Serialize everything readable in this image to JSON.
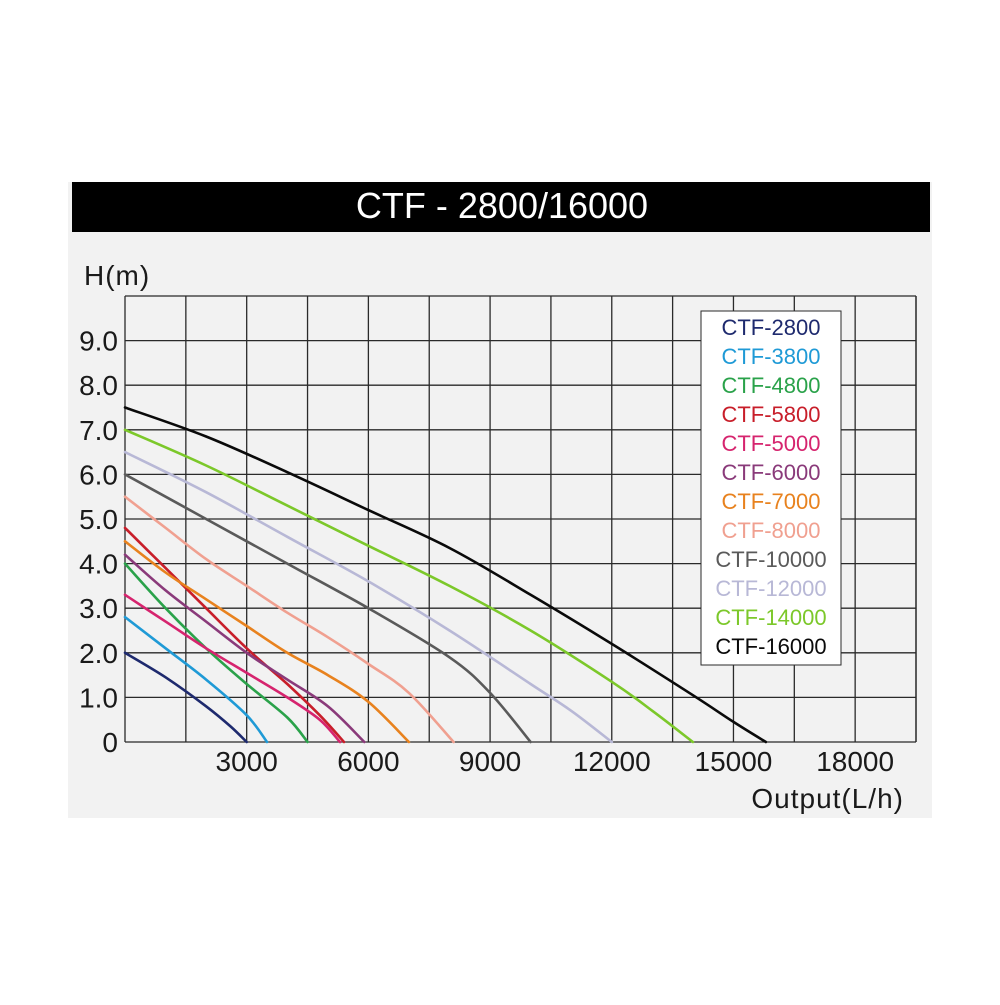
{
  "chart_data": {
    "type": "line",
    "title": "CTF - 2800/16000",
    "ylabel": "H(m)",
    "xlabel": "Output(L/h)",
    "xlim": [
      0,
      19500
    ],
    "ylim": [
      0,
      10
    ],
    "x_ticks": [
      {
        "value": 3000,
        "label": "3000"
      },
      {
        "value": 6000,
        "label": "6000"
      },
      {
        "value": 9000,
        "label": "9000"
      },
      {
        "value": 12000,
        "label": "12000"
      },
      {
        "value": 15000,
        "label": "15000"
      },
      {
        "value": 18000,
        "label": "18000"
      }
    ],
    "y_ticks": [
      {
        "value": 0,
        "label": "0"
      },
      {
        "value": 1,
        "label": "1.0"
      },
      {
        "value": 2,
        "label": "2.0"
      },
      {
        "value": 3,
        "label": "3.0"
      },
      {
        "value": 4,
        "label": "4.0"
      },
      {
        "value": 5,
        "label": "5.0"
      },
      {
        "value": 6,
        "label": "6.0"
      },
      {
        "value": 7,
        "label": "7.0"
      },
      {
        "value": 8,
        "label": "8.0"
      },
      {
        "value": 9,
        "label": "9.0"
      }
    ],
    "grid": true,
    "legend_position": "top-right",
    "series": [
      {
        "name": "CTF-2800",
        "color": "#1e2a6e",
        "x": [
          0,
          1000,
          2000,
          2600,
          3000
        ],
        "y": [
          2.0,
          1.45,
          0.8,
          0.35,
          0
        ]
      },
      {
        "name": "CTF-3800",
        "color": "#1f9ad6",
        "x": [
          0,
          1000,
          2000,
          3000,
          3500
        ],
        "y": [
          2.8,
          2.1,
          1.4,
          0.6,
          0
        ]
      },
      {
        "name": "CTF-4800",
        "color": "#2aa24a",
        "x": [
          0,
          1000,
          2000,
          3000,
          4000,
          4500
        ],
        "y": [
          4.0,
          3.0,
          2.1,
          1.3,
          0.55,
          0
        ]
      },
      {
        "name": "CTF-5800",
        "color": "#c81e2a",
        "x": [
          0,
          1000,
          2000,
          3000,
          4000,
          4800,
          5400
        ],
        "y": [
          4.8,
          3.9,
          3.0,
          2.1,
          1.3,
          0.6,
          0
        ]
      },
      {
        "name": "CTF-5000",
        "color": "#d6246e",
        "x": [
          0,
          1000,
          2000,
          3000,
          4000,
          4800,
          5300
        ],
        "y": [
          3.3,
          2.7,
          2.1,
          1.55,
          1.0,
          0.5,
          0
        ]
      },
      {
        "name": "CTF-6000",
        "color": "#8a3a7a",
        "x": [
          0,
          1000,
          2000,
          3000,
          4000,
          5000,
          5900
        ],
        "y": [
          4.2,
          3.4,
          2.7,
          2.0,
          1.4,
          0.8,
          0
        ]
      },
      {
        "name": "CTF-7000",
        "color": "#e8821e",
        "x": [
          0,
          1000,
          2000,
          3000,
          4000,
          5000,
          6000,
          7000
        ],
        "y": [
          4.5,
          3.8,
          3.2,
          2.6,
          2.0,
          1.5,
          0.9,
          0
        ]
      },
      {
        "name": "CTF-8000",
        "color": "#f0a090",
        "x": [
          0,
          1000,
          2000,
          3000,
          4000,
          5000,
          6000,
          7000,
          8100
        ],
        "y": [
          5.5,
          4.8,
          4.1,
          3.5,
          2.9,
          2.35,
          1.75,
          1.1,
          0
        ]
      },
      {
        "name": "CTF-10000",
        "color": "#5a5a5a",
        "x": [
          0,
          2000,
          4000,
          6000,
          8000,
          9000,
          10000
        ],
        "y": [
          6.0,
          5.0,
          4.0,
          3.0,
          1.9,
          1.1,
          0
        ]
      },
      {
        "name": "CTF-12000",
        "color": "#b8b8d6",
        "x": [
          0,
          2000,
          4000,
          6000,
          8000,
          10000,
          11000,
          12000
        ],
        "y": [
          6.5,
          5.6,
          4.6,
          3.6,
          2.5,
          1.3,
          0.7,
          0
        ]
      },
      {
        "name": "CTF-14000",
        "color": "#7cc82a",
        "x": [
          0,
          2000,
          4000,
          6000,
          8000,
          10000,
          12000,
          13000,
          14000
        ],
        "y": [
          7.0,
          6.2,
          5.3,
          4.4,
          3.5,
          2.5,
          1.35,
          0.7,
          0
        ]
      },
      {
        "name": "CTF-16000",
        "color": "#0a0a0a",
        "x": [
          0,
          2000,
          4000,
          6000,
          8000,
          10000,
          12000,
          14000,
          15000,
          15800
        ],
        "y": [
          7.5,
          6.85,
          6.05,
          5.2,
          4.35,
          3.3,
          2.2,
          1.05,
          0.45,
          0
        ]
      }
    ]
  }
}
